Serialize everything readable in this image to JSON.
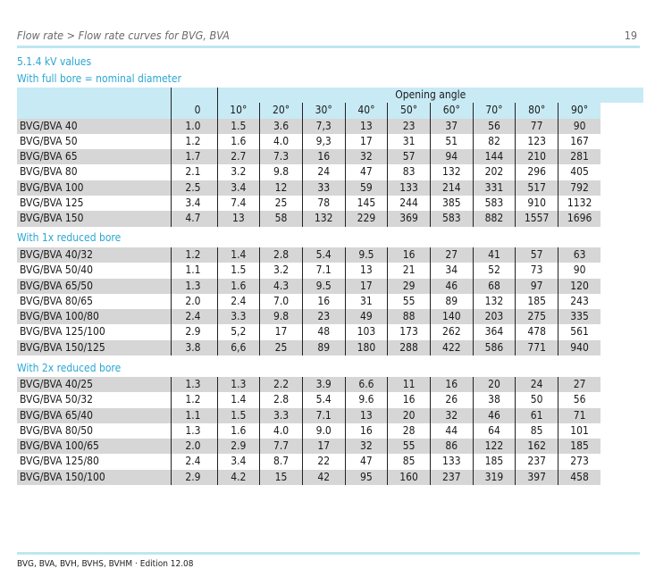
{
  "header": {
    "breadcrumb": "Flow rate > Flow rate curves for BVG, BVA",
    "page_number": "19"
  },
  "section_title": "5.1.4 kV values",
  "column_header": {
    "group": "Opening angle",
    "columns": [
      "0",
      "10°",
      "20°",
      "30°",
      "40°",
      "50°",
      "60°",
      "70°",
      "80°",
      "90°"
    ]
  },
  "tables": [
    {
      "title": "With full bore = nominal diameter",
      "rows": [
        {
          "name": "BVG/BVA 40",
          "values": [
            "1.0",
            "1.5",
            "3.6",
            "7,3",
            "13",
            "23",
            "37",
            "56",
            "77",
            "90"
          ]
        },
        {
          "name": "BVG/BVA 50",
          "values": [
            "1.2",
            "1.6",
            "4.0",
            "9,3",
            "17",
            "31",
            "51",
            "82",
            "123",
            "167"
          ]
        },
        {
          "name": "BVG/BVA 65",
          "values": [
            "1.7",
            "2.7",
            "7.3",
            "16",
            "32",
            "57",
            "94",
            "144",
            "210",
            "281"
          ]
        },
        {
          "name": "BVG/BVA 80",
          "values": [
            "2.1",
            "3.2",
            "9.8",
            "24",
            "47",
            "83",
            "132",
            "202",
            "296",
            "405"
          ]
        },
        {
          "name": "BVG/BVA 100",
          "values": [
            "2.5",
            "3.4",
            "12",
            "33",
            "59",
            "133",
            "214",
            "331",
            "517",
            "792"
          ]
        },
        {
          "name": "BVG/BVA 125",
          "values": [
            "3.4",
            "7.4",
            "25",
            "78",
            "145",
            "244",
            "385",
            "583",
            "910",
            "1132"
          ]
        },
        {
          "name": "BVG/BVA 150",
          "values": [
            "4.7",
            "13",
            "58",
            "132",
            "229",
            "369",
            "583",
            "882",
            "1557",
            "1696"
          ]
        }
      ]
    },
    {
      "title": "With 1x reduced bore",
      "rows": [
        {
          "name": "BVG/BVA 40/32",
          "values": [
            "1.2",
            "1.4",
            "2.8",
            "5.4",
            "9.5",
            "16",
            "27",
            "41",
            "57",
            "63"
          ]
        },
        {
          "name": "BVG/BVA 50/40",
          "values": [
            "1.1",
            "1.5",
            "3.2",
            "7.1",
            "13",
            "21",
            "34",
            "52",
            "73",
            "90"
          ]
        },
        {
          "name": "BVG/BVA 65/50",
          "values": [
            "1.3",
            "1.6",
            "4.3",
            "9.5",
            "17",
            "29",
            "46",
            "68",
            "97",
            "120"
          ]
        },
        {
          "name": "BVG/BVA 80/65",
          "values": [
            "2.0",
            "2.4",
            "7.0",
            "16",
            "31",
            "55",
            "89",
            "132",
            "185",
            "243"
          ]
        },
        {
          "name": "BVG/BVA 100/80",
          "values": [
            "2.4",
            "3.3",
            "9.8",
            "23",
            "49",
            "88",
            "140",
            "203",
            "275",
            "335"
          ]
        },
        {
          "name": "BVG/BVA 125/100",
          "values": [
            "2.9",
            "5,2",
            "17",
            "48",
            "103",
            "173",
            "262",
            "364",
            "478",
            "561"
          ]
        },
        {
          "name": "BVG/BVA 150/125",
          "values": [
            "3.8",
            "6,6",
            "25",
            "89",
            "180",
            "288",
            "422",
            "586",
            "771",
            "940"
          ]
        }
      ]
    },
    {
      "title": "With 2x reduced bore",
      "rows": [
        {
          "name": "BVG/BVA 40/25",
          "values": [
            "1.3",
            "1.3",
            "2.2",
            "3.9",
            "6.6",
            "11",
            "16",
            "20",
            "24",
            "27"
          ]
        },
        {
          "name": "BVG/BVA 50/32",
          "values": [
            "1.2",
            "1.4",
            "2.8",
            "5.4",
            "9.6",
            "16",
            "26",
            "38",
            "50",
            "56"
          ]
        },
        {
          "name": "BVG/BVA 65/40",
          "values": [
            "1.1",
            "1.5",
            "3.3",
            "7.1",
            "13",
            "20",
            "32",
            "46",
            "61",
            "71"
          ]
        },
        {
          "name": "BVG/BVA 80/50",
          "values": [
            "1.3",
            "1.6",
            "4.0",
            "9.0",
            "16",
            "28",
            "44",
            "64",
            "85",
            "101"
          ]
        },
        {
          "name": "BVG/BVA 100/65",
          "values": [
            "2.0",
            "2.9",
            "7.7",
            "17",
            "32",
            "55",
            "86",
            "122",
            "162",
            "185"
          ]
        },
        {
          "name": "BVG/BVA 125/80",
          "values": [
            "2.4",
            "3.4",
            "8.7",
            "22",
            "47",
            "85",
            "133",
            "185",
            "237",
            "273"
          ]
        },
        {
          "name": "BVG/BVA 150/100",
          "values": [
            "2.9",
            "4.2",
            "15",
            "42",
            "95",
            "160",
            "237",
            "319",
            "397",
            "458"
          ]
        }
      ]
    }
  ],
  "footer": "BVG, BVA, BVH, BVHS, BVHM · Edition 12.08",
  "colors": {
    "accent": "#2aa7d3",
    "header_bg": "#c8eaf5",
    "row_stripe": "#d6d6d6"
  }
}
